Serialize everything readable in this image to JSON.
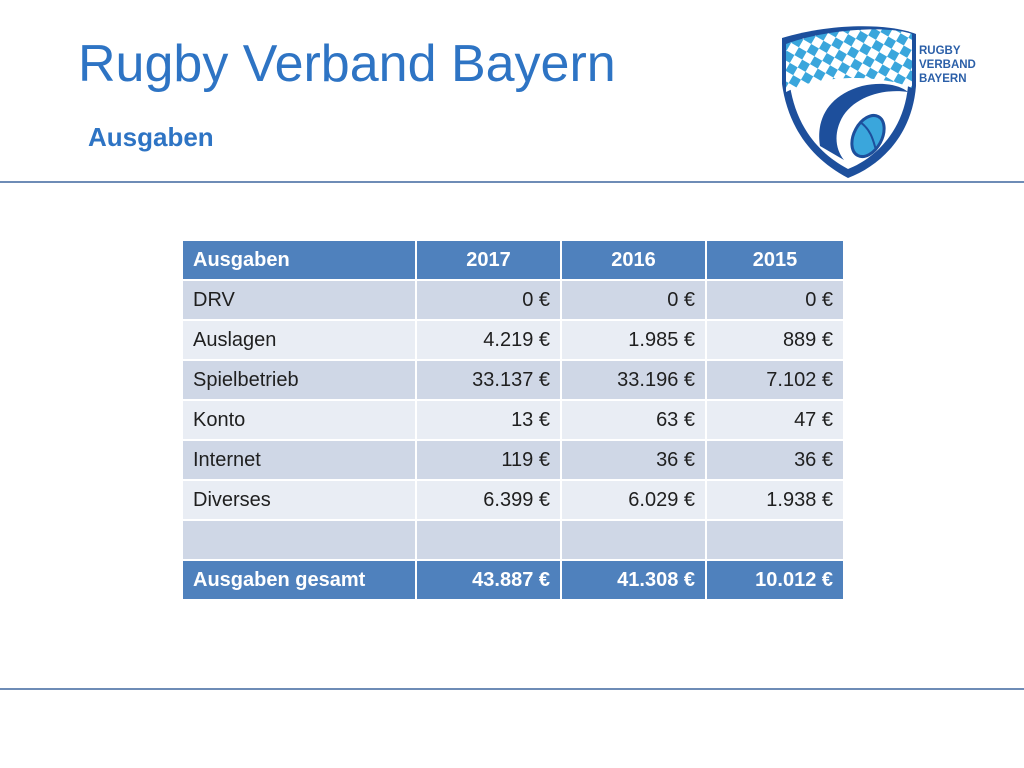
{
  "header": {
    "title": "Rugby Verband Bayern",
    "subtitle": "Ausgaben"
  },
  "logo": {
    "lines": [
      "RUGBY",
      "VERBAND",
      "BAYERN"
    ],
    "colors": {
      "blue": "#1d4f9c",
      "light_blue": "#3aa6dc",
      "text": "#2b5fa8"
    }
  },
  "table": {
    "headers": [
      "Ausgaben",
      "2017",
      "2016",
      "2015"
    ],
    "rows": [
      [
        "DRV",
        "0 €",
        "0 €",
        "0 €"
      ],
      [
        "Auslagen",
        "4.219 €",
        "1.985 €",
        "889 €"
      ],
      [
        "Spielbetrieb",
        "33.137 €",
        "33.196 €",
        "7.102 €"
      ],
      [
        "Konto",
        "13 €",
        "63 €",
        "47 €"
      ],
      [
        "Internet",
        "119 €",
        "36 €",
        "36 €"
      ],
      [
        "Diverses",
        "6.399 €",
        "6.029 €",
        "1.938 €"
      ],
      [
        "",
        "",
        "",
        ""
      ]
    ],
    "total": [
      "Ausgaben gesamt",
      "43.887 €",
      "41.308 €",
      "10.012 €"
    ],
    "colors": {
      "header": "#4f81bd",
      "row_odd": "#cfd7e6",
      "row_even": "#e9edf4"
    }
  }
}
